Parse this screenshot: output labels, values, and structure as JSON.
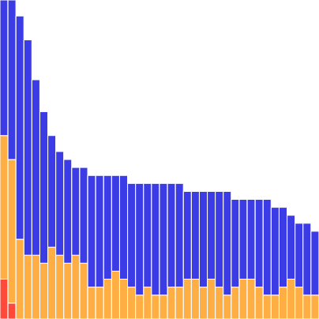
{
  "chart_data": {
    "type": "bar",
    "stacked": true,
    "tick_labels": false,
    "grid": false,
    "x": [
      0,
      1,
      2,
      3,
      4,
      5,
      6,
      7,
      8,
      9,
      10,
      11,
      12,
      13,
      14,
      15,
      16,
      17,
      18,
      19,
      20,
      21,
      22,
      23,
      24,
      25,
      26,
      27,
      28,
      29,
      30,
      31,
      32,
      33,
      34,
      35,
      36,
      37,
      38,
      39
    ],
    "xlim": [
      -0.5,
      39.5
    ],
    "ylim": [
      0,
      40
    ],
    "series": [
      {
        "color": "#ff4a3a",
        "values": [
          5,
          2,
          0,
          0,
          0,
          0,
          0,
          0,
          0,
          0,
          0,
          0,
          0,
          0,
          0,
          0,
          0,
          0,
          0,
          0,
          0,
          0,
          0,
          0,
          0,
          0,
          0,
          0,
          0,
          0,
          0,
          0,
          0,
          0,
          0,
          0,
          0,
          0,
          0,
          0
        ]
      },
      {
        "color": "#ffae44",
        "values": [
          18,
          18,
          10,
          8,
          8,
          7,
          9,
          8,
          7,
          8,
          7,
          4,
          4,
          5,
          6,
          5,
          4,
          3,
          4,
          3,
          3,
          4,
          4,
          5,
          5,
          4,
          5,
          4,
          3,
          4,
          5,
          5,
          4,
          3,
          3,
          4,
          5,
          4,
          3,
          3
        ]
      },
      {
        "color": "#3c3ce6",
        "values": [
          17,
          20,
          28,
          27,
          22,
          19,
          14,
          13,
          13,
          11,
          12,
          14,
          14,
          13,
          12,
          13,
          13,
          14,
          13,
          14,
          14,
          13,
          13,
          11,
          11,
          12,
          11,
          12,
          13,
          11,
          10,
          10,
          11,
          12,
          11,
          10,
          8,
          8,
          9,
          8
        ]
      }
    ]
  }
}
